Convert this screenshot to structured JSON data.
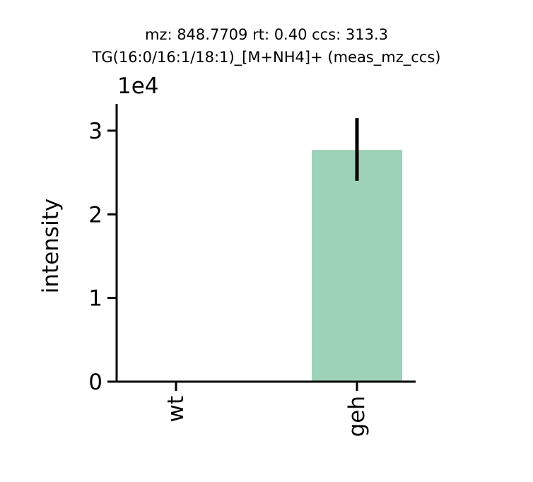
{
  "chart_data": {
    "type": "bar",
    "title_lines": [
      "mz: 848.7709 rt: 0.40 ccs: 313.3",
      "TG(16:0/16:1/18:1)_[M+NH4]+ (meas_mz_ccs)"
    ],
    "xlabel": "",
    "ylabel": "intensity",
    "y_multiplier_label": "1e4",
    "categories": [
      "wt",
      "geh"
    ],
    "values": [
      0,
      27700
    ],
    "error_low": [
      0,
      24000
    ],
    "error_high": [
      0,
      31500
    ],
    "bar_colors": [
      "#9dd2b8",
      "#9dd2b8"
    ],
    "ylim": [
      0,
      33200
    ],
    "yticks": [
      0,
      10000,
      20000,
      30000
    ],
    "ytick_labels": [
      "0",
      "1",
      "2",
      "3"
    ],
    "grid": false,
    "legend": "none"
  }
}
